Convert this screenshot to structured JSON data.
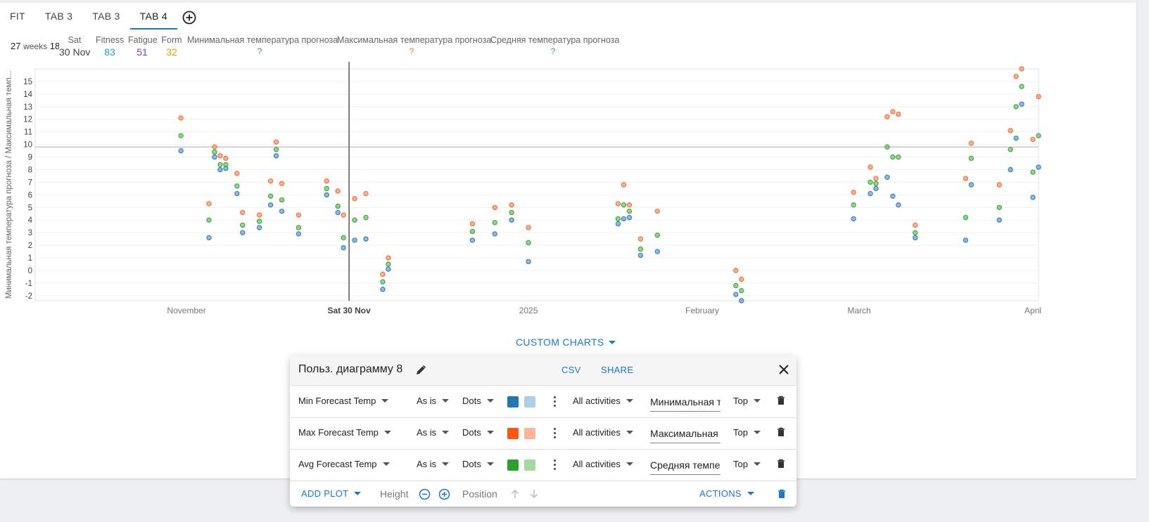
{
  "tabs": [
    {
      "label": "FIT",
      "active": false
    },
    {
      "label": "TAB 3",
      "active": false
    },
    {
      "label": "TAB 3",
      "active": false
    },
    {
      "label": "TAB 4",
      "active": true
    }
  ],
  "stats": {
    "weeks_value": "27",
    "weeks_unit": "weeks",
    "weeks_extra": "18",
    "day_label": "Sat",
    "day_value": "30 Nov",
    "fitness_label": "Fitness",
    "fitness_value": "83",
    "fatigue_label": "Fatigue",
    "fatigue_value": "51",
    "form_label": "Form",
    "form_value": "32",
    "min_label": "Минимальная температура прогноза",
    "min_value": "?",
    "max_label": "Максимальная температура прогноза",
    "max_value": "?",
    "avg_label": "Средняя температура прогноза",
    "avg_value": "?"
  },
  "colors": {
    "fitness": "#1aa0d8",
    "fatigue": "#7b3fd8",
    "form": "#e8a000",
    "min": "#3b82c4",
    "max": "#f5753f",
    "avg": "#3fae3f",
    "accent": "#1976d2"
  },
  "chart_data": {
    "type": "scatter",
    "ylabel": "Минимальная температура прогноза / Максимальная темп...",
    "yticks": [
      -2,
      -1,
      0,
      1,
      2,
      3,
      4,
      5,
      6,
      7,
      8,
      9,
      10,
      11,
      12,
      13,
      14,
      15
    ],
    "ylim": [
      -2.4,
      16
    ],
    "x_range": [
      "2024-10-05",
      "2025-04-02"
    ],
    "xticks": [
      {
        "date": "2024-11-01",
        "label": "November"
      },
      {
        "date": "2024-11-30",
        "label": "Sat 30 Nov"
      },
      {
        "date": "2025-01-01",
        "label": "2025"
      },
      {
        "date": "2025-02-01",
        "label": "February"
      },
      {
        "date": "2025-03-01",
        "label": "March"
      },
      {
        "date": "2025-04-01",
        "label": "April"
      }
    ],
    "cursor_date": "2024-11-30",
    "reference_line_y": 9.8,
    "grid": true,
    "series": [
      {
        "name": "Минимальная температура прогноза",
        "color": "#3b82c4",
        "points": [
          [
            "2024-10-31",
            9.5
          ],
          [
            "2024-11-05",
            2.6
          ],
          [
            "2024-11-06",
            9.0
          ],
          [
            "2024-11-07",
            8.0
          ],
          [
            "2024-11-08",
            8.1
          ],
          [
            "2024-11-10",
            6.1
          ],
          [
            "2024-11-11",
            3.0
          ],
          [
            "2024-11-14",
            3.4
          ],
          [
            "2024-11-16",
            5.2
          ],
          [
            "2024-11-17",
            9.1
          ],
          [
            "2024-11-18",
            4.7
          ],
          [
            "2024-11-21",
            2.9
          ],
          [
            "2024-11-26",
            6.0
          ],
          [
            "2024-11-28",
            4.6
          ],
          [
            "2024-11-29",
            1.8
          ],
          [
            "2024-12-01",
            2.4
          ],
          [
            "2024-12-03",
            2.5
          ],
          [
            "2024-12-06",
            -1.5
          ],
          [
            "2024-12-07",
            0.1
          ],
          [
            "2024-12-22",
            2.4
          ],
          [
            "2024-12-26",
            2.9
          ],
          [
            "2024-12-29",
            4.0
          ],
          [
            "2025-01-01",
            0.7
          ],
          [
            "2025-01-17",
            3.7
          ],
          [
            "2025-01-18",
            4.1
          ],
          [
            "2025-01-19",
            4.2
          ],
          [
            "2025-01-21",
            1.2
          ],
          [
            "2025-01-24",
            1.5
          ],
          [
            "2025-02-07",
            -1.9
          ],
          [
            "2025-02-08",
            -2.4
          ],
          [
            "2025-02-28",
            4.1
          ],
          [
            "2025-03-03",
            6.1
          ],
          [
            "2025-03-04",
            6.5
          ],
          [
            "2025-03-06",
            7.4
          ],
          [
            "2025-03-07",
            5.9
          ],
          [
            "2025-03-08",
            5.2
          ],
          [
            "2025-03-11",
            2.6
          ],
          [
            "2025-03-20",
            2.4
          ],
          [
            "2025-03-21",
            6.8
          ],
          [
            "2025-03-26",
            4.0
          ],
          [
            "2025-03-28",
            8.0
          ],
          [
            "2025-03-29",
            10.5
          ],
          [
            "2025-03-30",
            13.2
          ],
          [
            "2025-04-01",
            5.8
          ],
          [
            "2025-04-02",
            8.2
          ]
        ]
      },
      {
        "name": "Максимальная температура прогноза",
        "color": "#f5753f",
        "points": [
          [
            "2024-10-31",
            12.1
          ],
          [
            "2024-11-05",
            5.3
          ],
          [
            "2024-11-06",
            9.8
          ],
          [
            "2024-11-07",
            9.1
          ],
          [
            "2024-11-08",
            8.9
          ],
          [
            "2024-11-10",
            7.7
          ],
          [
            "2024-11-11",
            4.6
          ],
          [
            "2024-11-14",
            4.4
          ],
          [
            "2024-11-16",
            7.1
          ],
          [
            "2024-11-17",
            10.2
          ],
          [
            "2024-11-18",
            6.9
          ],
          [
            "2024-11-21",
            4.4
          ],
          [
            "2024-11-26",
            7.1
          ],
          [
            "2024-11-28",
            6.3
          ],
          [
            "2024-11-29",
            4.4
          ],
          [
            "2024-12-01",
            5.7
          ],
          [
            "2024-12-03",
            6.1
          ],
          [
            "2024-12-06",
            -0.3
          ],
          [
            "2024-12-07",
            1.0
          ],
          [
            "2024-12-22",
            3.7
          ],
          [
            "2024-12-26",
            5.0
          ],
          [
            "2024-12-29",
            5.2
          ],
          [
            "2025-01-01",
            3.4
          ],
          [
            "2025-01-17",
            5.3
          ],
          [
            "2025-01-18",
            6.8
          ],
          [
            "2025-01-19",
            5.2
          ],
          [
            "2025-01-21",
            2.5
          ],
          [
            "2025-01-24",
            4.7
          ],
          [
            "2025-02-07",
            0.0
          ],
          [
            "2025-02-08",
            -0.7
          ],
          [
            "2025-02-28",
            6.2
          ],
          [
            "2025-03-03",
            8.2
          ],
          [
            "2025-03-04",
            7.3
          ],
          [
            "2025-03-06",
            12.2
          ],
          [
            "2025-03-07",
            12.6
          ],
          [
            "2025-03-08",
            12.4
          ],
          [
            "2025-03-11",
            3.6
          ],
          [
            "2025-03-20",
            7.3
          ],
          [
            "2025-03-21",
            10.1
          ],
          [
            "2025-03-26",
            6.8
          ],
          [
            "2025-03-28",
            11.1
          ],
          [
            "2025-03-29",
            15.4
          ],
          [
            "2025-03-30",
            16.0
          ],
          [
            "2025-04-01",
            10.4
          ],
          [
            "2025-04-02",
            13.8
          ]
        ]
      },
      {
        "name": "Средняя температура прогноза",
        "color": "#3fae3f",
        "points": [
          [
            "2024-10-31",
            10.7
          ],
          [
            "2024-11-05",
            4.0
          ],
          [
            "2024-11-06",
            9.4
          ],
          [
            "2024-11-07",
            8.4
          ],
          [
            "2024-11-08",
            8.4
          ],
          [
            "2024-11-10",
            6.7
          ],
          [
            "2024-11-11",
            3.6
          ],
          [
            "2024-11-14",
            3.9
          ],
          [
            "2024-11-16",
            5.9
          ],
          [
            "2024-11-17",
            9.6
          ],
          [
            "2024-11-18",
            5.6
          ],
          [
            "2024-11-21",
            3.4
          ],
          [
            "2024-11-26",
            6.5
          ],
          [
            "2024-11-28",
            5.1
          ],
          [
            "2024-11-29",
            2.6
          ],
          [
            "2024-12-01",
            4.0
          ],
          [
            "2024-12-03",
            4.2
          ],
          [
            "2024-12-06",
            -0.9
          ],
          [
            "2024-12-07",
            0.5
          ],
          [
            "2024-12-22",
            3.1
          ],
          [
            "2024-12-26",
            3.8
          ],
          [
            "2024-12-29",
            4.6
          ],
          [
            "2025-01-01",
            2.2
          ],
          [
            "2025-01-17",
            4.1
          ],
          [
            "2025-01-18",
            5.2
          ],
          [
            "2025-01-19",
            4.7
          ],
          [
            "2025-01-21",
            1.7
          ],
          [
            "2025-01-24",
            2.8
          ],
          [
            "2025-02-07",
            -1.2
          ],
          [
            "2025-02-08",
            -1.6
          ],
          [
            "2025-02-28",
            5.2
          ],
          [
            "2025-03-03",
            7.0
          ],
          [
            "2025-03-04",
            6.9
          ],
          [
            "2025-03-06",
            9.8
          ],
          [
            "2025-03-07",
            9.0
          ],
          [
            "2025-03-08",
            9.0
          ],
          [
            "2025-03-11",
            3.0
          ],
          [
            "2025-03-20",
            4.2
          ],
          [
            "2025-03-21",
            8.9
          ],
          [
            "2025-03-26",
            5.0
          ],
          [
            "2025-03-28",
            9.6
          ],
          [
            "2025-03-29",
            13.0
          ],
          [
            "2025-03-30",
            14.6
          ],
          [
            "2025-04-01",
            7.8
          ],
          [
            "2025-04-02",
            10.7
          ]
        ]
      }
    ]
  },
  "custom_charts_label": "CUSTOM CHARTS",
  "panel": {
    "title": "Польз. диаграмму 8",
    "csv_label": "CSV",
    "share_label": "SHARE",
    "rows": [
      {
        "metric": "Min Forecast Temp",
        "transform": "As is",
        "style": "Dots",
        "color1": "#1f77b4",
        "color2": "#aecde6",
        "filter": "All activities",
        "label_value": "Минимальная температура прогноза",
        "position": "Top"
      },
      {
        "metric": "Max Forecast Temp",
        "transform": "As is",
        "style": "Dots",
        "color1": "#ff5511",
        "color2": "#ffb499",
        "filter": "All activities",
        "label_value": "Максимальная температура прогноза",
        "position": "Top"
      },
      {
        "metric": "Avg Forecast Temp",
        "transform": "As is",
        "style": "Dots",
        "color1": "#2ca02c",
        "color2": "#a3d9a3",
        "filter": "All activities",
        "label_value": "Средняя температура прогноза",
        "position": "Top"
      }
    ],
    "footer": {
      "add_plot_label": "ADD PLOT",
      "height_label": "Height",
      "position_label": "Position",
      "actions_label": "ACTIONS"
    }
  }
}
